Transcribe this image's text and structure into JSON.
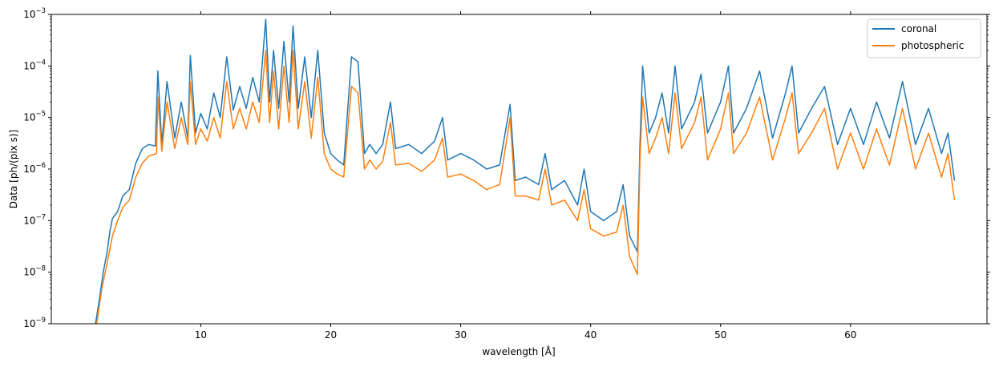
{
  "chart_data": {
    "type": "line",
    "title": "",
    "xlabel": "wavelength [Å]",
    "ylabel": "Data [ph/(pix s)]",
    "xlim": [
      -1.5,
      70.5
    ],
    "ylim": [
      1e-09,
      0.001
    ],
    "yscale": "log",
    "grid": false,
    "legend_position": "top-right",
    "x_ticks": [
      10,
      20,
      30,
      40,
      50,
      60
    ],
    "x_tick_labels": [
      "10",
      "20",
      "30",
      "40",
      "50",
      "60"
    ],
    "y_ticks": [
      1e-09,
      1e-08,
      1e-07,
      1e-06,
      1e-05,
      0.0001,
      0.001
    ],
    "y_tick_labels": [
      {
        "base": "10",
        "exp": "−9"
      },
      {
        "base": "10",
        "exp": "−8"
      },
      {
        "base": "10",
        "exp": "−7"
      },
      {
        "base": "10",
        "exp": "−6"
      },
      {
        "base": "10",
        "exp": "−5"
      },
      {
        "base": "10",
        "exp": "−4"
      },
      {
        "base": "10",
        "exp": "−3"
      }
    ],
    "series": [
      {
        "name": "coronal",
        "color": "#1f77b4",
        "points": [
          [
            1.9,
            1e-09
          ],
          [
            2.2,
            3e-09
          ],
          [
            2.5,
            1e-08
          ],
          [
            2.8,
            2.5e-08
          ],
          [
            3.0,
            6e-08
          ],
          [
            3.2,
            1.1e-07
          ],
          [
            3.6,
            1.5e-07
          ],
          [
            4.0,
            3e-07
          ],
          [
            4.5,
            4e-07
          ],
          [
            5.0,
            1.3e-06
          ],
          [
            5.5,
            2.5e-06
          ],
          [
            6.0,
            3e-06
          ],
          [
            6.5,
            2.8e-06
          ],
          [
            6.7,
            8e-05
          ],
          [
            7.0,
            3e-06
          ],
          [
            7.4,
            5e-05
          ],
          [
            8.0,
            4e-06
          ],
          [
            8.5,
            2e-05
          ],
          [
            9.0,
            4e-06
          ],
          [
            9.2,
            0.00016
          ],
          [
            9.6,
            5e-06
          ],
          [
            10.0,
            1.2e-05
          ],
          [
            10.5,
            6e-06
          ],
          [
            11.0,
            3e-05
          ],
          [
            11.5,
            1e-05
          ],
          [
            12.0,
            0.00015
          ],
          [
            12.5,
            1.4e-05
          ],
          [
            13.0,
            4e-05
          ],
          [
            13.5,
            1.5e-05
          ],
          [
            14.0,
            6e-05
          ],
          [
            14.5,
            2e-05
          ],
          [
            15.0,
            0.0008
          ],
          [
            15.3,
            2e-05
          ],
          [
            15.6,
            0.0002
          ],
          [
            16.0,
            1.5e-05
          ],
          [
            16.4,
            0.0003
          ],
          [
            16.8,
            2e-05
          ],
          [
            17.1,
            0.0006
          ],
          [
            17.5,
            1.5e-05
          ],
          [
            18.0,
            0.00015
          ],
          [
            18.5,
            1e-05
          ],
          [
            19.0,
            0.0002
          ],
          [
            19.5,
            5e-06
          ],
          [
            20.0,
            2e-06
          ],
          [
            20.5,
            1.5e-06
          ],
          [
            21.0,
            1.2e-06
          ],
          [
            21.6,
            0.00015
          ],
          [
            22.1,
            0.00012
          ],
          [
            22.6,
            2e-06
          ],
          [
            23.0,
            3e-06
          ],
          [
            23.5,
            2e-06
          ],
          [
            24.0,
            3e-06
          ],
          [
            24.6,
            2e-05
          ],
          [
            25.0,
            2.5e-06
          ],
          [
            26.0,
            3e-06
          ],
          [
            27.0,
            2e-06
          ],
          [
            28.0,
            3.5e-06
          ],
          [
            28.6,
            1e-05
          ],
          [
            29.0,
            1.5e-06
          ],
          [
            30.0,
            2e-06
          ],
          [
            31.0,
            1.5e-06
          ],
          [
            32.0,
            1e-06
          ],
          [
            33.0,
            1.2e-06
          ],
          [
            33.8,
            1.8e-05
          ],
          [
            34.2,
            6e-07
          ],
          [
            35.0,
            7e-07
          ],
          [
            36.0,
            5e-07
          ],
          [
            36.5,
            2e-06
          ],
          [
            37.0,
            4e-07
          ],
          [
            38.0,
            6e-07
          ],
          [
            39.0,
            2e-07
          ],
          [
            39.5,
            1e-06
          ],
          [
            40.0,
            1.5e-07
          ],
          [
            41.0,
            1e-07
          ],
          [
            42.0,
            1.5e-07
          ],
          [
            42.5,
            5e-07
          ],
          [
            43.0,
            5e-08
          ],
          [
            43.6,
            2.5e-08
          ],
          [
            43.8,
            3e-06
          ],
          [
            44.0,
            0.0001
          ],
          [
            44.5,
            5e-06
          ],
          [
            45.0,
            1e-05
          ],
          [
            45.5,
            3e-05
          ],
          [
            46.0,
            5e-06
          ],
          [
            46.5,
            0.0001
          ],
          [
            47.0,
            6e-06
          ],
          [
            48.0,
            2e-05
          ],
          [
            48.5,
            7e-05
          ],
          [
            49.0,
            5e-06
          ],
          [
            50.0,
            2e-05
          ],
          [
            50.6,
            0.0001
          ],
          [
            51.0,
            5e-06
          ],
          [
            52.0,
            1.5e-05
          ],
          [
            53.0,
            8e-05
          ],
          [
            54.0,
            4e-06
          ],
          [
            55.0,
            3e-05
          ],
          [
            55.5,
            0.0001
          ],
          [
            56.0,
            5e-06
          ],
          [
            57.0,
            1.5e-05
          ],
          [
            58.0,
            4e-05
          ],
          [
            59.0,
            3e-06
          ],
          [
            60.0,
            1.5e-05
          ],
          [
            61.0,
            3e-06
          ],
          [
            62.0,
            2e-05
          ],
          [
            63.0,
            4e-06
          ],
          [
            64.0,
            5e-05
          ],
          [
            65.0,
            3e-06
          ],
          [
            66.0,
            1.5e-05
          ],
          [
            67.0,
            2e-06
          ],
          [
            67.5,
            5e-06
          ],
          [
            68.0,
            6e-07
          ]
        ]
      },
      {
        "name": "photospheric",
        "color": "#ff7f0e",
        "points": [
          [
            2.0,
            1e-09
          ],
          [
            2.4,
            5e-09
          ],
          [
            2.8,
            1.5e-08
          ],
          [
            3.2,
            5e-08
          ],
          [
            3.6,
            1e-07
          ],
          [
            4.0,
            1.8e-07
          ],
          [
            4.5,
            2.5e-07
          ],
          [
            5.0,
            7e-07
          ],
          [
            5.5,
            1.3e-06
          ],
          [
            6.0,
            1.8e-06
          ],
          [
            6.6,
            2e-06
          ],
          [
            6.7,
            2.5e-05
          ],
          [
            7.0,
            2.2e-06
          ],
          [
            7.4,
            2e-05
          ],
          [
            8.0,
            2.5e-06
          ],
          [
            8.5,
            1e-05
          ],
          [
            9.0,
            3e-06
          ],
          [
            9.2,
            5e-05
          ],
          [
            9.6,
            3e-06
          ],
          [
            10.0,
            6e-06
          ],
          [
            10.5,
            3.5e-06
          ],
          [
            11.0,
            1e-05
          ],
          [
            11.5,
            4e-06
          ],
          [
            12.0,
            5e-05
          ],
          [
            12.5,
            6e-06
          ],
          [
            13.0,
            1.5e-05
          ],
          [
            13.5,
            6e-06
          ],
          [
            14.0,
            2e-05
          ],
          [
            14.5,
            8e-06
          ],
          [
            15.0,
            0.0002
          ],
          [
            15.3,
            8e-06
          ],
          [
            15.6,
            8e-05
          ],
          [
            16.0,
            6e-06
          ],
          [
            16.4,
            0.0001
          ],
          [
            16.8,
            8e-06
          ],
          [
            17.1,
            0.0002
          ],
          [
            17.5,
            6e-06
          ],
          [
            18.0,
            5e-05
          ],
          [
            18.5,
            4e-06
          ],
          [
            19.0,
            6e-05
          ],
          [
            19.5,
            2e-06
          ],
          [
            20.0,
            1e-06
          ],
          [
            20.5,
            8e-07
          ],
          [
            21.0,
            7e-07
          ],
          [
            21.6,
            4e-05
          ],
          [
            22.1,
            3e-05
          ],
          [
            22.6,
            1e-06
          ],
          [
            23.0,
            1.5e-06
          ],
          [
            23.5,
            1e-06
          ],
          [
            24.0,
            1.4e-06
          ],
          [
            24.6,
            8e-06
          ],
          [
            25.0,
            1.2e-06
          ],
          [
            26.0,
            1.3e-06
          ],
          [
            27.0,
            9e-07
          ],
          [
            28.0,
            1.5e-06
          ],
          [
            28.6,
            4e-06
          ],
          [
            29.0,
            7e-07
          ],
          [
            30.0,
            8e-07
          ],
          [
            31.0,
            6e-07
          ],
          [
            32.0,
            4e-07
          ],
          [
            33.0,
            5e-07
          ],
          [
            33.8,
            1e-05
          ],
          [
            34.2,
            3e-07
          ],
          [
            35.0,
            3e-07
          ],
          [
            36.0,
            2.5e-07
          ],
          [
            36.5,
            1e-06
          ],
          [
            37.0,
            2e-07
          ],
          [
            38.0,
            2.5e-07
          ],
          [
            39.0,
            1e-07
          ],
          [
            39.5,
            4e-07
          ],
          [
            40.0,
            7e-08
          ],
          [
            41.0,
            5e-08
          ],
          [
            42.0,
            6e-08
          ],
          [
            42.5,
            2e-07
          ],
          [
            43.0,
            2e-08
          ],
          [
            43.6,
            9e-09
          ],
          [
            43.8,
            1.5e-06
          ],
          [
            44.0,
            2.5e-05
          ],
          [
            44.5,
            2e-06
          ],
          [
            45.0,
            4e-06
          ],
          [
            45.5,
            1e-05
          ],
          [
            46.0,
            2e-06
          ],
          [
            46.5,
            3e-05
          ],
          [
            47.0,
            2.5e-06
          ],
          [
            48.0,
            8e-06
          ],
          [
            48.5,
            2.5e-05
          ],
          [
            49.0,
            1.5e-06
          ],
          [
            50.0,
            6e-06
          ],
          [
            50.6,
            3e-05
          ],
          [
            51.0,
            2e-06
          ],
          [
            52.0,
            5e-06
          ],
          [
            53.0,
            2.5e-05
          ],
          [
            54.0,
            1.5e-06
          ],
          [
            55.0,
            1e-05
          ],
          [
            55.5,
            3e-05
          ],
          [
            56.0,
            2e-06
          ],
          [
            57.0,
            5e-06
          ],
          [
            58.0,
            1.5e-05
          ],
          [
            59.0,
            1e-06
          ],
          [
            60.0,
            5e-06
          ],
          [
            61.0,
            1e-06
          ],
          [
            62.0,
            6e-06
          ],
          [
            63.0,
            1.2e-06
          ],
          [
            64.0,
            1.5e-05
          ],
          [
            65.0,
            1e-06
          ],
          [
            66.0,
            5e-06
          ],
          [
            67.0,
            7e-07
          ],
          [
            67.5,
            2e-06
          ],
          [
            68.0,
            2.5e-07
          ]
        ]
      }
    ]
  }
}
